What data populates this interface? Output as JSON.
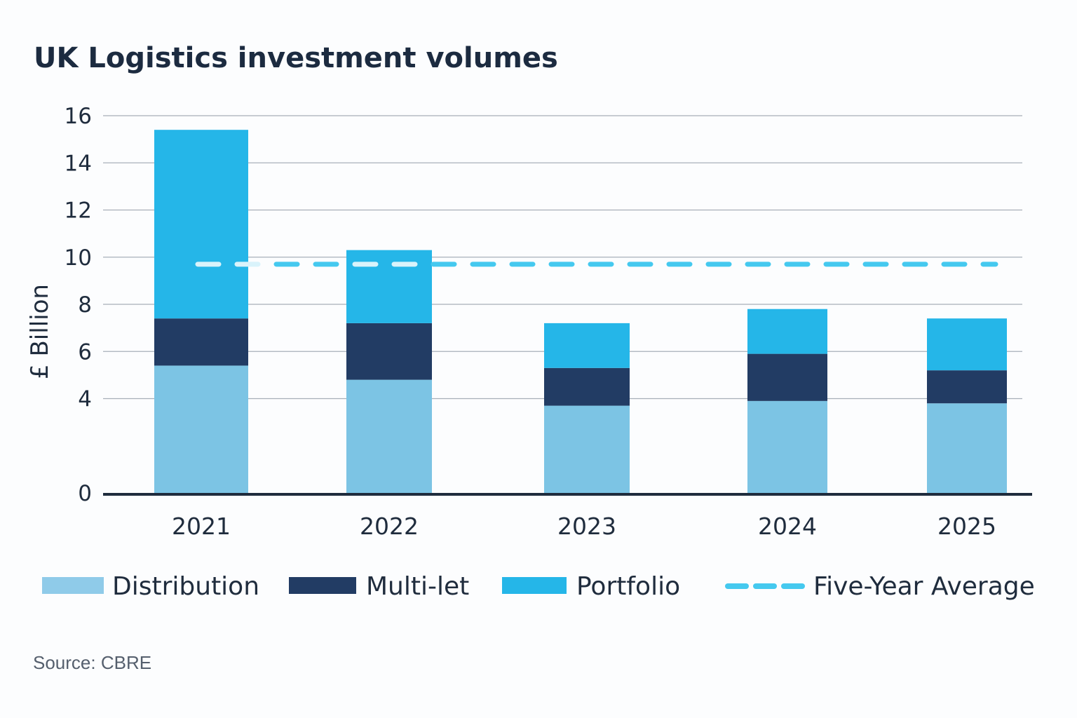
{
  "chart_data": {
    "type": "bar",
    "stacked": true,
    "title": "UK Logistics investment volumes",
    "ylabel": "£ Billion",
    "xlabel": "",
    "categories": [
      "2021",
      "2022",
      "2023",
      "2024",
      "2025"
    ],
    "y_ticks": [
      0,
      4,
      6,
      8,
      10,
      12,
      14,
      16
    ],
    "ylim": [
      0,
      16
    ],
    "grid": true,
    "legend_position": "bottom",
    "series": [
      {
        "name": "Distribution",
        "color": "#7cc4e4",
        "legend_color": "#8fcbe9",
        "values": [
          5.4,
          4.8,
          3.7,
          3.9,
          3.8
        ]
      },
      {
        "name": "Multi-let",
        "color": "#223c64",
        "values": [
          2.0,
          2.4,
          1.6,
          2.0,
          1.4
        ]
      },
      {
        "name": "Portfolio",
        "color": "#25b6e8",
        "values": [
          8.0,
          3.1,
          1.9,
          1.9,
          2.2
        ]
      }
    ],
    "reference_lines": [
      {
        "name": "Five-Year Average",
        "value": 9.7,
        "style": "dashed",
        "color": "#45c9ef"
      }
    ],
    "source_note": "Source: CBRE"
  }
}
